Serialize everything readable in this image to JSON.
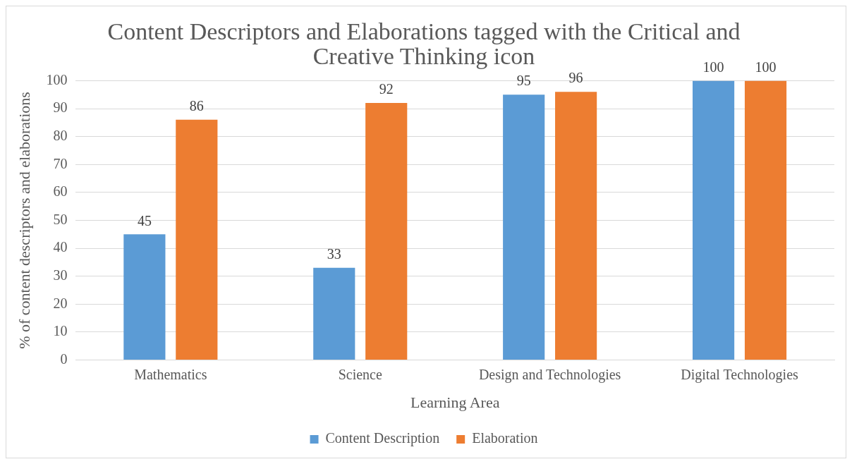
{
  "chart_data": {
    "type": "bar",
    "title": "Content Descriptors and Elaborations tagged with the Critical and Creative Thinking icon",
    "xlabel": "Learning Area",
    "ylabel": "% of content descriptors and elaborations",
    "categories": [
      "Mathematics",
      "Science",
      "Design and Technologies",
      "Digital Technologies"
    ],
    "series": [
      {
        "name": "Content Description",
        "color": "#5b9bd5",
        "values": [
          45,
          33,
          95,
          100
        ]
      },
      {
        "name": "Elaboration",
        "color": "#ed7d31",
        "values": [
          86,
          92,
          96,
          100
        ]
      }
    ],
    "ylim": [
      0,
      100
    ],
    "yticks": [
      0,
      10,
      20,
      30,
      40,
      50,
      60,
      70,
      80,
      90,
      100
    ],
    "grid": "y",
    "legend": "bottom",
    "data_labels": true
  }
}
